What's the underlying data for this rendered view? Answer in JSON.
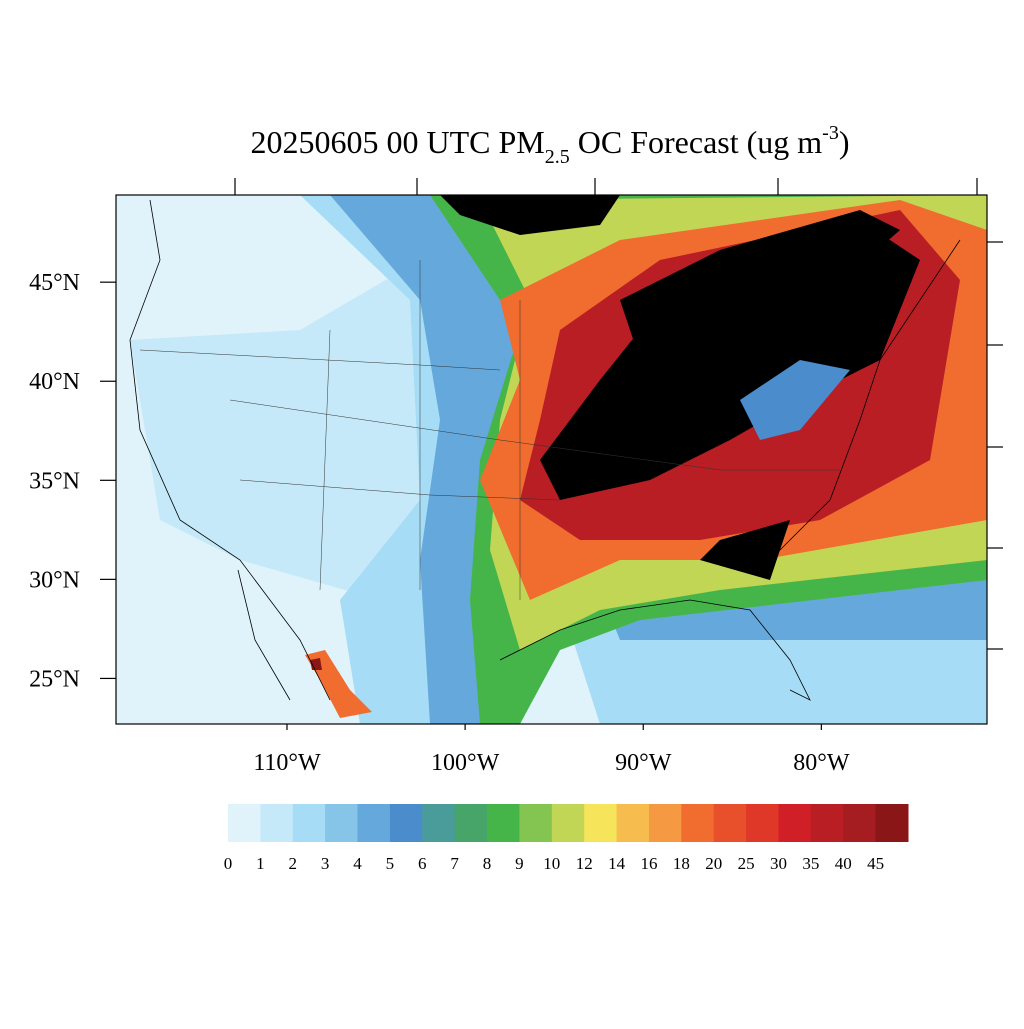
{
  "chart_data": {
    "type": "map",
    "title": {
      "main": "20250605 00 UTC PM",
      "sub": "2.5",
      "rest": " OC Forecast (ug m",
      "sup": "-3",
      "end": ")"
    },
    "xlim": [
      -119.6,
      -70.7
    ],
    "ylim": [
      22.7,
      49.4
    ],
    "xticks": [
      {
        "value": -110,
        "label": "110°W"
      },
      {
        "value": -100,
        "label": "100°W"
      },
      {
        "value": -90,
        "label": "90°W"
      },
      {
        "value": -80,
        "label": "80°W"
      }
    ],
    "yticks": [
      {
        "value": 45,
        "label": "45°N"
      },
      {
        "value": 40,
        "label": "40°N"
      },
      {
        "value": 35,
        "label": "35°N"
      },
      {
        "value": 30,
        "label": "30°N"
      },
      {
        "value": 25,
        "label": "25°N"
      }
    ],
    "colorbar": {
      "levels": [
        0,
        1,
        2,
        3,
        4,
        5,
        6,
        7,
        8,
        9,
        10,
        12,
        14,
        16,
        18,
        20,
        25,
        30,
        35,
        40,
        45
      ],
      "colors": [
        "#e0f3fb",
        "#c5e9f8",
        "#a6dcf5",
        "#86c4e8",
        "#65a9dc",
        "#4a8ccc",
        "#4a9c9a",
        "#47a56a",
        "#45b54a",
        "#84c451",
        "#c2d656",
        "#f6e45a",
        "#f6bd4e",
        "#f59a42",
        "#f06c2f",
        "#e8502b",
        "#e03828",
        "#d01f26",
        "#b81e24",
        "#a51c21",
        "#8b1618"
      ]
    }
  }
}
